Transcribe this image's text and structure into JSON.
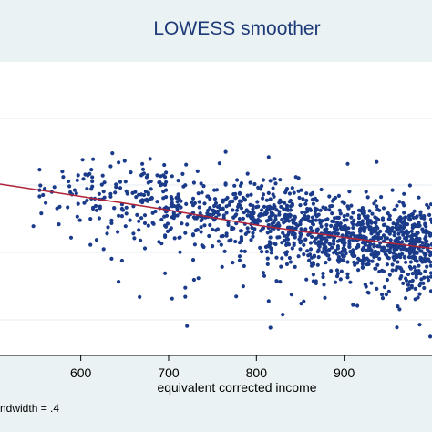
{
  "chart_data": {
    "type": "scatter",
    "title": "LOWESS smoother",
    "xlabel": "equivalent corrected income",
    "ylabel": "",
    "xlim": [
      508,
      1000
    ],
    "ylim": [
      0,
      1
    ],
    "x_ticks": [
      600,
      700,
      800,
      900
    ],
    "x_tick_labels": [
      "600",
      "700",
      "800",
      "900"
    ],
    "grid": true,
    "note": "ndwidth = .4",
    "point_color": "#1a3a8a",
    "line_color": "#b0243a",
    "series": [
      {
        "type": "line",
        "x": [
          508,
          600,
          700,
          800,
          900,
          1000
        ],
        "y": [
          0.66,
          0.615,
          0.565,
          0.51,
          0.465,
          0.425
        ]
      },
      {
        "type": "scatter",
        "x": [],
        "y": []
      }
    ]
  }
}
